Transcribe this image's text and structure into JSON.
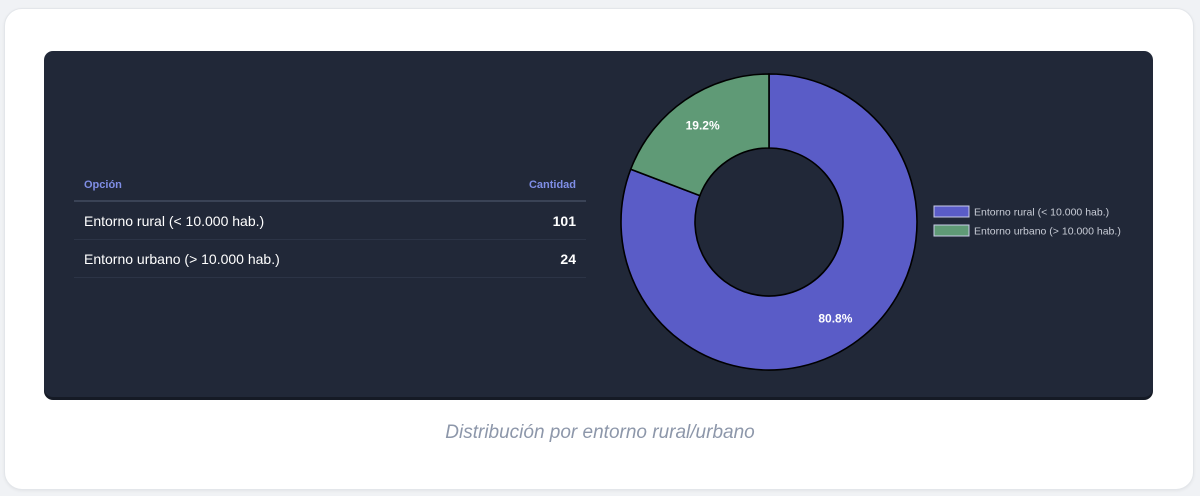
{
  "table": {
    "headers": {
      "option": "Opción",
      "count": "Cantidad"
    },
    "rows": [
      {
        "option": "Entorno rural (< 10.000 hab.)",
        "count": "101"
      },
      {
        "option": "Entorno urbano (> 10.000 hab.)",
        "count": "24"
      }
    ]
  },
  "chart_data": {
    "type": "pie",
    "variant": "donut",
    "categories": [
      "Entorno rural (< 10.000 hab.)",
      "Entorno urbano (> 10.000 hab.)"
    ],
    "values": [
      101,
      24
    ],
    "percent_labels": [
      "80.8%",
      "19.2%"
    ],
    "colors": [
      "#5a5cc7",
      "#5f9a76"
    ],
    "legend_position": "right"
  },
  "caption": "Distribución por entorno rural/urbano",
  "colors": {
    "panel_bg": "#212838",
    "header_text": "#7f8ee6",
    "caption_text": "#8d97aa"
  }
}
